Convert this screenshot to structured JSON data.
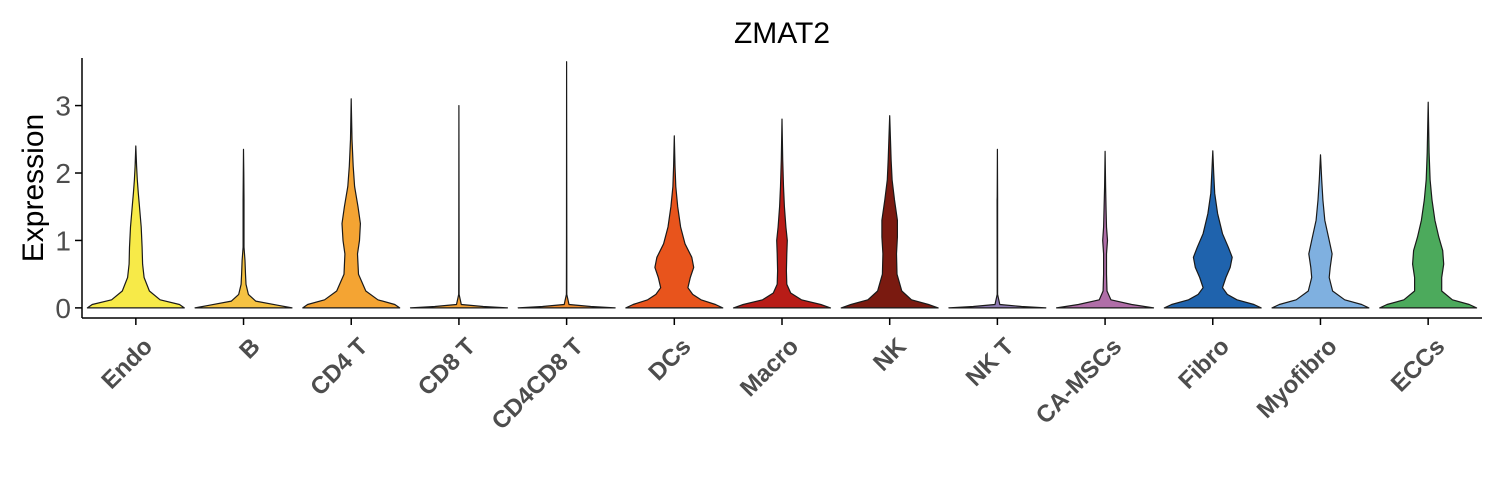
{
  "chart_data": {
    "type": "violin",
    "title": "ZMAT2",
    "xlabel": "",
    "ylabel": "Expression",
    "ylim": [
      -0.15,
      3.75
    ],
    "yticks": [
      0,
      1,
      2,
      3
    ],
    "grid": false,
    "legend": "none",
    "categories": [
      "Endo",
      "B",
      "CD4 T",
      "CD8 T",
      "CD4CD8 T",
      "DCs",
      "Macro",
      "NK",
      "NK T",
      "CA-MSCs",
      "Fibro",
      "Myofibro",
      "ECCs"
    ],
    "colors": [
      "#f7ea48",
      "#f5c242",
      "#f4a433",
      "#f3a032",
      "#ef8a2c",
      "#e8541c",
      "#b81c17",
      "#7a1a10",
      "#8e7bb2",
      "#b06ea8",
      "#1f63ad",
      "#7fb0e0",
      "#4caa5c"
    ],
    "max_values": [
      2.4,
      2.35,
      3.1,
      3.0,
      3.65,
      2.55,
      2.8,
      2.85,
      2.35,
      2.32,
      2.33,
      2.27,
      3.05
    ],
    "density_profiles": [
      [
        [
          0,
          1
        ],
        [
          0.05,
          0.9
        ],
        [
          0.12,
          0.5
        ],
        [
          0.25,
          0.28
        ],
        [
          0.45,
          0.17
        ],
        [
          0.65,
          0.14
        ],
        [
          0.9,
          0.13
        ],
        [
          1.2,
          0.11
        ],
        [
          1.55,
          0.07
        ],
        [
          1.7,
          0.05
        ],
        [
          1.9,
          0.03
        ],
        [
          2.1,
          0.015
        ],
        [
          2.4,
          0
        ]
      ],
      [
        [
          0,
          1
        ],
        [
          0.04,
          0.7
        ],
        [
          0.1,
          0.25
        ],
        [
          0.2,
          0.1
        ],
        [
          0.35,
          0.05
        ],
        [
          0.5,
          0.04
        ],
        [
          0.7,
          0.03
        ],
        [
          0.9,
          0.01
        ],
        [
          1.2,
          0.01
        ],
        [
          1.6,
          0.01
        ],
        [
          2.0,
          0.005
        ],
        [
          2.35,
          0
        ]
      ],
      [
        [
          0,
          1
        ],
        [
          0.05,
          0.9
        ],
        [
          0.12,
          0.55
        ],
        [
          0.25,
          0.3
        ],
        [
          0.5,
          0.15
        ],
        [
          0.8,
          0.13
        ],
        [
          1.0,
          0.17
        ],
        [
          1.25,
          0.19
        ],
        [
          1.5,
          0.14
        ],
        [
          1.8,
          0.07
        ],
        [
          2.1,
          0.04
        ],
        [
          2.5,
          0.015
        ],
        [
          3.1,
          0
        ]
      ],
      [
        [
          0,
          1
        ],
        [
          0.02,
          0.5
        ],
        [
          0.05,
          0.05
        ],
        [
          0.2,
          0.004
        ],
        [
          1.0,
          0.003
        ],
        [
          3.0,
          0
        ]
      ],
      [
        [
          0,
          1
        ],
        [
          0.02,
          0.5
        ],
        [
          0.05,
          0.05
        ],
        [
          0.2,
          0.004
        ],
        [
          1.0,
          0.003
        ],
        [
          3.65,
          0
        ]
      ],
      [
        [
          0,
          1
        ],
        [
          0.05,
          0.85
        ],
        [
          0.12,
          0.55
        ],
        [
          0.2,
          0.38
        ],
        [
          0.3,
          0.28
        ],
        [
          0.45,
          0.33
        ],
        [
          0.6,
          0.4
        ],
        [
          0.75,
          0.36
        ],
        [
          0.95,
          0.22
        ],
        [
          1.2,
          0.13
        ],
        [
          1.5,
          0.07
        ],
        [
          1.8,
          0.03
        ],
        [
          2.1,
          0.015
        ],
        [
          2.55,
          0
        ]
      ],
      [
        [
          0,
          1
        ],
        [
          0.05,
          0.8
        ],
        [
          0.12,
          0.4
        ],
        [
          0.22,
          0.18
        ],
        [
          0.35,
          0.1
        ],
        [
          0.55,
          0.09
        ],
        [
          0.8,
          0.1
        ],
        [
          1.0,
          0.11
        ],
        [
          1.2,
          0.08
        ],
        [
          1.5,
          0.05
        ],
        [
          1.8,
          0.03
        ],
        [
          2.2,
          0.015
        ],
        [
          2.8,
          0
        ]
      ],
      [
        [
          0,
          1
        ],
        [
          0.05,
          0.8
        ],
        [
          0.12,
          0.45
        ],
        [
          0.25,
          0.25
        ],
        [
          0.5,
          0.15
        ],
        [
          0.8,
          0.14
        ],
        [
          1.05,
          0.16
        ],
        [
          1.3,
          0.16
        ],
        [
          1.6,
          0.1
        ],
        [
          1.9,
          0.05
        ],
        [
          2.2,
          0.03
        ],
        [
          2.85,
          0
        ]
      ],
      [
        [
          0,
          1
        ],
        [
          0.02,
          0.5
        ],
        [
          0.05,
          0.05
        ],
        [
          0.2,
          0.004
        ],
        [
          1.6,
          0.005
        ],
        [
          1.65,
          0.004
        ],
        [
          2.35,
          0
        ]
      ],
      [
        [
          0,
          1
        ],
        [
          0.05,
          0.55
        ],
        [
          0.12,
          0.12
        ],
        [
          0.25,
          0.04
        ],
        [
          0.5,
          0.03
        ],
        [
          0.8,
          0.03
        ],
        [
          1.0,
          0.05
        ],
        [
          1.2,
          0.03
        ],
        [
          1.5,
          0.02
        ],
        [
          1.8,
          0.01
        ],
        [
          2.32,
          0
        ]
      ],
      [
        [
          0,
          1
        ],
        [
          0.05,
          0.85
        ],
        [
          0.12,
          0.5
        ],
        [
          0.2,
          0.3
        ],
        [
          0.3,
          0.2
        ],
        [
          0.45,
          0.27
        ],
        [
          0.6,
          0.36
        ],
        [
          0.75,
          0.4
        ],
        [
          0.9,
          0.32
        ],
        [
          1.1,
          0.2
        ],
        [
          1.4,
          0.1
        ],
        [
          1.7,
          0.04
        ],
        [
          2.0,
          0.02
        ],
        [
          2.33,
          0
        ]
      ],
      [
        [
          0,
          1
        ],
        [
          0.05,
          0.85
        ],
        [
          0.12,
          0.5
        ],
        [
          0.25,
          0.25
        ],
        [
          0.45,
          0.18
        ],
        [
          0.6,
          0.2
        ],
        [
          0.8,
          0.24
        ],
        [
          1.0,
          0.18
        ],
        [
          1.3,
          0.09
        ],
        [
          1.6,
          0.05
        ],
        [
          1.9,
          0.025
        ],
        [
          2.27,
          0
        ]
      ],
      [
        [
          0,
          1
        ],
        [
          0.05,
          0.85
        ],
        [
          0.12,
          0.5
        ],
        [
          0.25,
          0.28
        ],
        [
          0.45,
          0.28
        ],
        [
          0.65,
          0.32
        ],
        [
          0.85,
          0.3
        ],
        [
          1.05,
          0.22
        ],
        [
          1.3,
          0.14
        ],
        [
          1.6,
          0.08
        ],
        [
          1.9,
          0.04
        ],
        [
          2.3,
          0.02
        ],
        [
          3.05,
          0
        ]
      ]
    ]
  }
}
